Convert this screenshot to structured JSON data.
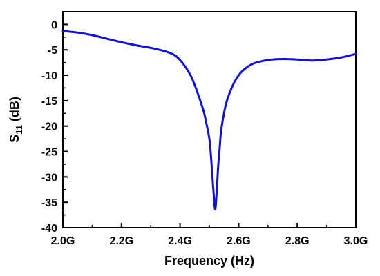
{
  "chart_data": {
    "type": "line",
    "xlabel": "Frequency (Hz)",
    "ylabel_main": "S",
    "ylabel_sub": "11",
    "ylabel_unit": " (dB)",
    "xlim": [
      2.0,
      3.0
    ],
    "ylim": [
      -40,
      2.5
    ],
    "x_ticks": [
      {
        "value": 2.0,
        "label": "2.0G"
      },
      {
        "value": 2.2,
        "label": "2.2G"
      },
      {
        "value": 2.4,
        "label": "2.4G"
      },
      {
        "value": 2.6,
        "label": "2.6G"
      },
      {
        "value": 2.8,
        "label": "2.8G"
      },
      {
        "value": 3.0,
        "label": "3.0G"
      }
    ],
    "y_ticks": [
      {
        "value": 0,
        "label": "0"
      },
      {
        "value": -5,
        "label": "-5"
      },
      {
        "value": -10,
        "label": "-10"
      },
      {
        "value": -15,
        "label": "-15"
      },
      {
        "value": -20,
        "label": "-20"
      },
      {
        "value": -25,
        "label": "-25"
      },
      {
        "value": -30,
        "label": "-30"
      },
      {
        "value": -35,
        "label": "-35"
      },
      {
        "value": -40,
        "label": "-40"
      }
    ],
    "grid": false,
    "line_color": "#1010e0",
    "series": [
      {
        "x": [
          2.0,
          2.05,
          2.1,
          2.15,
          2.2,
          2.25,
          2.3,
          2.35,
          2.38,
          2.4,
          2.42,
          2.44,
          2.46,
          2.48,
          2.49,
          2.5,
          2.505,
          2.51,
          2.515,
          2.52,
          2.525,
          2.53,
          2.535,
          2.54,
          2.55,
          2.56,
          2.58,
          2.6,
          2.62,
          2.65,
          2.7,
          2.75,
          2.8,
          2.85,
          2.9,
          2.95,
          3.0
        ],
        "y": [
          -1.3,
          -1.6,
          -2.1,
          -2.8,
          -3.5,
          -4.1,
          -4.6,
          -5.3,
          -6.0,
          -7.0,
          -8.5,
          -10.5,
          -13.5,
          -17.0,
          -19.5,
          -22.5,
          -25.5,
          -29.5,
          -33.5,
          -36.4,
          -33.0,
          -28.0,
          -24.5,
          -21.0,
          -17.5,
          -15.0,
          -12.0,
          -10.0,
          -8.8,
          -7.7,
          -7.0,
          -6.8,
          -6.9,
          -7.1,
          -6.9,
          -6.5,
          -5.8
        ]
      }
    ]
  }
}
